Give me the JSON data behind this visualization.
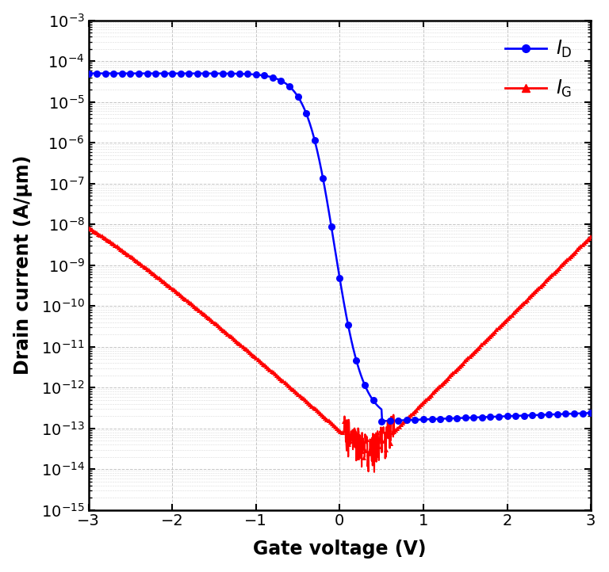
{
  "xlabel": "Gate voltage (V)",
  "ylabel": "Drain current (A/μm)",
  "xlim": [
    -3,
    3
  ],
  "ylim_log_min": -15,
  "ylim_log_max": -3,
  "grid_color": "#c0c0c0",
  "background_color": "#ffffff",
  "ID_color": "#0000ff",
  "IG_color": "#ff0000"
}
